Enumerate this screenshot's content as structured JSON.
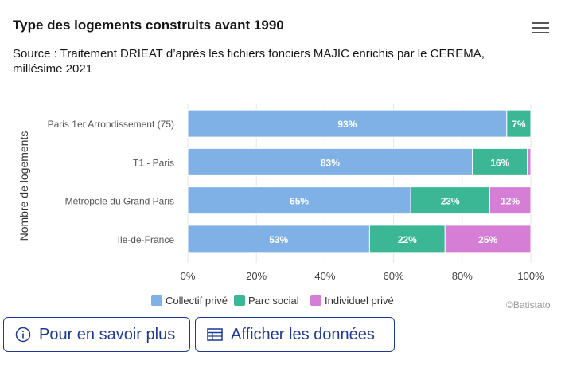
{
  "header": {
    "title": "Type des logements construits avant 1990",
    "subtitle": "Source : Traitement DRIEAT d’après les fichiers fonciers MAJIC enrichis par le CEREMA, millésime 2021"
  },
  "menu": {
    "icon": "hamburger-menu-icon"
  },
  "credit": "©Batistato",
  "buttons": {
    "more_info": {
      "label": "Pour en savoir plus",
      "icon": "info-icon"
    },
    "show_data": {
      "label": "Afficher les données",
      "icon": "table-icon"
    }
  },
  "chart_data": {
    "type": "bar",
    "orientation": "horizontal",
    "stacking": "percent",
    "categories": [
      "Paris 1er Arrondissement (75)",
      "T1 - Paris",
      "Métropole du Grand Paris",
      "Ile-de-France"
    ],
    "series": [
      {
        "name": "Collectif privé",
        "color": "#7fb1e6",
        "values": [
          93,
          83,
          65,
          53
        ]
      },
      {
        "name": "Parc social",
        "color": "#3bb796",
        "values": [
          7,
          16,
          23,
          22
        ]
      },
      {
        "name": "Individuel privé",
        "color": "#d67ed6",
        "values": [
          0,
          1,
          12,
          25
        ]
      }
    ],
    "data_labels": [
      [
        "93%",
        "7%",
        ""
      ],
      [
        "83%",
        "16%",
        ""
      ],
      [
        "65%",
        "23%",
        "12%"
      ],
      [
        "53%",
        "22%",
        "25%"
      ]
    ],
    "ylabel": "Nombre de logements",
    "xlim": [
      0,
      100
    ],
    "x_ticks": [
      "0%",
      "20%",
      "40%",
      "60%",
      "80%",
      "100%"
    ],
    "grid": true,
    "legend_position": "bottom-center"
  }
}
